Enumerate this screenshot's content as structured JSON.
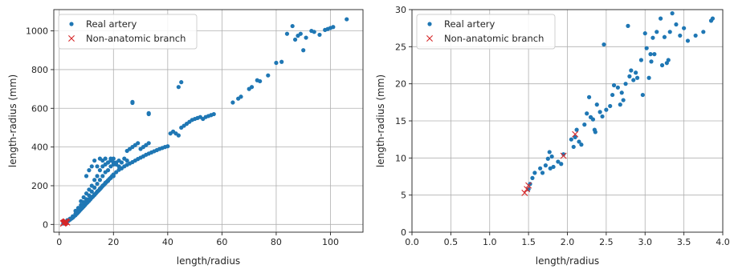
{
  "chart_data": [
    {
      "type": "scatter",
      "xlabel": "length/radius",
      "ylabel": "length-radius (mm)",
      "xlim": [
        -2,
        112
      ],
      "ylim": [
        -40,
        1110
      ],
      "xticks": [
        0,
        20,
        40,
        60,
        80,
        100
      ],
      "xtick_labels": [
        "0",
        "20",
        "40",
        "60",
        "80",
        "100"
      ],
      "yticks": [
        0,
        200,
        400,
        600,
        800,
        1000
      ],
      "ytick_labels": [
        "0",
        "200",
        "400",
        "600",
        "800",
        "1000"
      ],
      "grid": true,
      "legend_position": "top-left",
      "series": [
        {
          "name": "Real artery",
          "marker": "dot",
          "color": "#1f77b4",
          "points": [
            [
              1.5,
              5
            ],
            [
              2,
              8
            ],
            [
              2.5,
              12
            ],
            [
              3,
              15
            ],
            [
              3.5,
              20
            ],
            [
              4,
              25
            ],
            [
              4.5,
              30
            ],
            [
              5,
              35
            ],
            [
              5.5,
              42
            ],
            [
              6,
              48
            ],
            [
              6.5,
              55
            ],
            [
              7,
              62
            ],
            [
              7.5,
              70
            ],
            [
              8,
              78
            ],
            [
              8.5,
              85
            ],
            [
              9,
              92
            ],
            [
              9.5,
              100
            ],
            [
              10,
              108
            ],
            [
              10.5,
              115
            ],
            [
              11,
              122
            ],
            [
              11.5,
              130
            ],
            [
              12,
              138
            ],
            [
              12.5,
              145
            ],
            [
              13,
              152
            ],
            [
              13.5,
              160
            ],
            [
              14,
              168
            ],
            [
              14.5,
              175
            ],
            [
              15,
              182
            ],
            [
              15.5,
              190
            ],
            [
              16,
              198
            ],
            [
              16.5,
              205
            ],
            [
              17,
              212
            ],
            [
              17.5,
              220
            ],
            [
              18,
              228
            ],
            [
              18.5,
              235
            ],
            [
              19,
              242
            ],
            [
              19.5,
              250
            ],
            [
              20,
              258
            ],
            [
              21,
              270
            ],
            [
              22,
              282
            ],
            [
              23,
              290
            ],
            [
              24,
              300
            ],
            [
              25,
              308
            ],
            [
              26,
              315
            ],
            [
              27,
              322
            ],
            [
              28,
              330
            ],
            [
              29,
              338
            ],
            [
              30,
              345
            ],
            [
              31,
              352
            ],
            [
              32,
              360
            ],
            [
              33,
              366
            ],
            [
              34,
              372
            ],
            [
              35,
              378
            ],
            [
              36,
              384
            ],
            [
              37,
              390
            ],
            [
              38,
              395
            ],
            [
              39,
              400
            ],
            [
              40,
              404
            ],
            [
              3,
              22
            ],
            [
              4,
              30
            ],
            [
              5,
              42
            ],
            [
              6,
              55
            ],
            [
              7,
              70
            ],
            [
              8,
              85
            ],
            [
              9,
              100
            ],
            [
              10,
              112
            ],
            [
              11,
              130
            ],
            [
              12,
              142
            ],
            [
              13,
              155
            ],
            [
              14,
              170
            ],
            [
              15,
              185
            ],
            [
              16,
              200
            ],
            [
              17,
              215
            ],
            [
              18,
              225
            ],
            [
              19,
              240
            ],
            [
              20,
              250
            ],
            [
              6,
              70
            ],
            [
              7,
              85
            ],
            [
              8,
              100
            ],
            [
              8,
              120
            ],
            [
              9,
              115
            ],
            [
              9,
              140
            ],
            [
              10,
              130
            ],
            [
              10,
              160
            ],
            [
              11,
              150
            ],
            [
              11,
              180
            ],
            [
              12,
              170
            ],
            [
              12,
              200
            ],
            [
              13,
              190
            ],
            [
              13,
              230
            ],
            [
              14,
              210
            ],
            [
              14,
              250
            ],
            [
              15,
              230
            ],
            [
              15,
              280
            ],
            [
              16,
              250
            ],
            [
              16,
              300
            ],
            [
              17,
              270
            ],
            [
              17,
              310
            ],
            [
              18,
              280
            ],
            [
              18,
              320
            ],
            [
              19,
              300
            ],
            [
              19,
              330
            ],
            [
              20,
              310
            ],
            [
              20,
              340
            ],
            [
              21,
              320
            ],
            [
              22,
              330
            ],
            [
              23,
              320
            ],
            [
              24,
              340
            ],
            [
              25,
              330
            ],
            [
              10,
              250
            ],
            [
              11,
              280
            ],
            [
              12,
              300
            ],
            [
              13,
              330
            ],
            [
              14,
              300
            ],
            [
              15,
              340
            ],
            [
              16,
              330
            ],
            [
              17,
              340
            ],
            [
              18,
              320
            ],
            [
              19,
              340
            ],
            [
              20,
              320
            ],
            [
              21,
              310
            ],
            [
              22,
              300
            ],
            [
              25,
              380
            ],
            [
              26,
              390
            ],
            [
              27,
              400
            ],
            [
              28,
              410
            ],
            [
              29,
              420
            ],
            [
              30,
              390
            ],
            [
              31,
              400
            ],
            [
              32,
              410
            ],
            [
              33,
              420
            ],
            [
              27,
              628
            ],
            [
              27,
              633
            ],
            [
              33,
              570
            ],
            [
              33,
              575
            ],
            [
              41,
              470
            ],
            [
              42,
              480
            ],
            [
              43,
              470
            ],
            [
              44,
              460
            ],
            [
              45,
              500
            ],
            [
              46,
              510
            ],
            [
              47,
              520
            ],
            [
              48,
              530
            ],
            [
              49,
              540
            ],
            [
              50,
              545
            ],
            [
              51,
              550
            ],
            [
              52,
              555
            ],
            [
              53,
              545
            ],
            [
              54,
              555
            ],
            [
              55,
              560
            ],
            [
              56,
              565
            ],
            [
              57,
              570
            ],
            [
              44,
              710
            ],
            [
              45,
              735
            ],
            [
              64,
              630
            ],
            [
              66,
              650
            ],
            [
              67,
              660
            ],
            [
              70,
              700
            ],
            [
              71,
              710
            ],
            [
              73,
              745
            ],
            [
              74,
              740
            ],
            [
              77,
              770
            ],
            [
              80,
              835
            ],
            [
              82,
              840
            ],
            [
              84,
              985
            ],
            [
              86,
              1025
            ],
            [
              87,
              955
            ],
            [
              88,
              975
            ],
            [
              89,
              985
            ],
            [
              90,
              900
            ],
            [
              91,
              965
            ],
            [
              93,
              1000
            ],
            [
              94,
              995
            ],
            [
              96,
              980
            ],
            [
              98,
              1005
            ],
            [
              99,
              1010
            ],
            [
              100,
              1015
            ],
            [
              101,
              1020
            ],
            [
              106,
              1060
            ]
          ]
        },
        {
          "name": "Non-anatomic branch",
          "marker": "x",
          "color": "#d62728",
          "points": [
            [
              1.45,
              5
            ],
            [
              1.5,
              6
            ],
            [
              1.6,
              7
            ],
            [
              1.8,
              8
            ],
            [
              1.9,
              10
            ],
            [
              2.1,
              12
            ],
            [
              2.3,
              14
            ],
            [
              2.5,
              16
            ],
            [
              2.7,
              12
            ],
            [
              2.9,
              10
            ]
          ]
        }
      ]
    },
    {
      "type": "scatter",
      "xlabel": "length/radius",
      "ylabel": "length-radius (mm)",
      "xlim": [
        0,
        4
      ],
      "ylim": [
        0,
        30
      ],
      "xticks": [
        0,
        0.5,
        1.0,
        1.5,
        2.0,
        2.5,
        3.0,
        3.5,
        4.0
      ],
      "xtick_labels": [
        "0.0",
        "0.5",
        "1.0",
        "1.5",
        "2.0",
        "2.5",
        "3.0",
        "3.5",
        "4.0"
      ],
      "yticks": [
        0,
        5,
        10,
        15,
        20,
        25,
        30
      ],
      "ytick_labels": [
        "0",
        "5",
        "10",
        "15",
        "20",
        "25",
        "30"
      ],
      "grid": true,
      "legend_position": "top-left",
      "series": [
        {
          "name": "Real artery",
          "marker": "dot",
          "color": "#1f77b4",
          "points": [
            [
              1.5,
              5.8
            ],
            [
              1.52,
              6.5
            ],
            [
              1.55,
              7.3
            ],
            [
              1.58,
              8.0
            ],
            [
              1.65,
              8.6
            ],
            [
              1.68,
              8.0
            ],
            [
              1.72,
              9.0
            ],
            [
              1.75,
              9.9
            ],
            [
              1.77,
              10.8
            ],
            [
              1.78,
              8.6
            ],
            [
              1.8,
              10.2
            ],
            [
              1.82,
              8.8
            ],
            [
              1.88,
              9.5
            ],
            [
              1.92,
              9.2
            ],
            [
              1.95,
              10.5
            ],
            [
              2.05,
              12.5
            ],
            [
              2.08,
              11.5
            ],
            [
              2.1,
              12.8
            ],
            [
              2.12,
              13.8
            ],
            [
              2.15,
              12.2
            ],
            [
              2.18,
              11.8
            ],
            [
              2.22,
              14.5
            ],
            [
              2.25,
              16.0
            ],
            [
              2.28,
              18.2
            ],
            [
              2.3,
              15.5
            ],
            [
              2.33,
              15.2
            ],
            [
              2.35,
              13.8
            ],
            [
              2.36,
              13.5
            ],
            [
              2.38,
              17.2
            ],
            [
              2.42,
              16.2
            ],
            [
              2.45,
              15.6
            ],
            [
              2.47,
              25.3
            ],
            [
              2.5,
              16.5
            ],
            [
              2.55,
              17.0
            ],
            [
              2.58,
              18.5
            ],
            [
              2.6,
              19.8
            ],
            [
              2.65,
              19.5
            ],
            [
              2.68,
              17.2
            ],
            [
              2.7,
              18.8
            ],
            [
              2.72,
              17.8
            ],
            [
              2.75,
              20.0
            ],
            [
              2.78,
              27.8
            ],
            [
              2.8,
              21.0
            ],
            [
              2.82,
              21.8
            ],
            [
              2.85,
              20.5
            ],
            [
              2.88,
              21.5
            ],
            [
              2.9,
              20.8
            ],
            [
              2.95,
              23.2
            ],
            [
              2.97,
              18.5
            ],
            [
              3.0,
              26.8
            ],
            [
              3.02,
              24.8
            ],
            [
              3.05,
              20.8
            ],
            [
              3.07,
              24.0
            ],
            [
              3.08,
              23.0
            ],
            [
              3.1,
              26.2
            ],
            [
              3.12,
              24.0
            ],
            [
              3.15,
              27.0
            ],
            [
              3.2,
              28.8
            ],
            [
              3.22,
              22.5
            ],
            [
              3.25,
              26.3
            ],
            [
              3.28,
              22.8
            ],
            [
              3.3,
              23.2
            ],
            [
              3.32,
              27.0
            ],
            [
              3.35,
              29.5
            ],
            [
              3.4,
              28.0
            ],
            [
              3.45,
              26.5
            ],
            [
              3.5,
              27.5
            ],
            [
              3.55,
              25.8
            ],
            [
              3.65,
              26.5
            ],
            [
              3.75,
              27.0
            ],
            [
              3.85,
              28.5
            ],
            [
              3.87,
              28.8
            ]
          ]
        },
        {
          "name": "Non-anatomic branch",
          "marker": "x",
          "color": "#d62728",
          "points": [
            [
              1.45,
              5.3
            ],
            [
              1.48,
              5.8
            ],
            [
              1.5,
              6.3
            ],
            [
              1.95,
              10.3
            ],
            [
              2.1,
              13.2
            ]
          ]
        }
      ]
    }
  ]
}
